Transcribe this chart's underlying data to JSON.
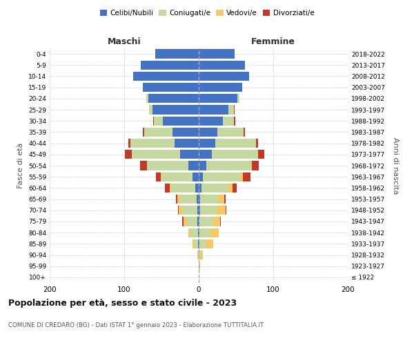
{
  "age_groups": [
    "100+",
    "95-99",
    "90-94",
    "85-89",
    "80-84",
    "75-79",
    "70-74",
    "65-69",
    "60-64",
    "55-59",
    "50-54",
    "45-49",
    "40-44",
    "35-39",
    "30-34",
    "25-29",
    "20-24",
    "15-19",
    "10-14",
    "5-9",
    "0-4"
  ],
  "birth_years": [
    "≤ 1922",
    "1923-1927",
    "1928-1932",
    "1933-1937",
    "1938-1942",
    "1943-1947",
    "1948-1952",
    "1953-1957",
    "1958-1962",
    "1963-1967",
    "1968-1972",
    "1973-1977",
    "1978-1982",
    "1983-1987",
    "1988-1992",
    "1993-1997",
    "1998-2002",
    "2003-2007",
    "2008-2012",
    "2013-2017",
    "2018-2022"
  ],
  "maschi": {
    "celibi": [
      0,
      0,
      0,
      1,
      1,
      2,
      2,
      3,
      5,
      8,
      14,
      25,
      32,
      35,
      48,
      62,
      68,
      75,
      88,
      78,
      58
    ],
    "coniugati": [
      0,
      0,
      1,
      5,
      10,
      14,
      20,
      22,
      32,
      42,
      55,
      65,
      60,
      38,
      12,
      5,
      2,
      0,
      0,
      0,
      0
    ],
    "vedovi": [
      0,
      0,
      1,
      2,
      3,
      4,
      5,
      4,
      2,
      1,
      0,
      0,
      0,
      0,
      0,
      0,
      0,
      0,
      0,
      0,
      0
    ],
    "divorziati": [
      0,
      0,
      0,
      0,
      0,
      2,
      1,
      2,
      6,
      6,
      10,
      9,
      2,
      2,
      1,
      0,
      0,
      0,
      0,
      0,
      0
    ]
  },
  "femmine": {
    "nubili": [
      0,
      0,
      0,
      1,
      1,
      1,
      2,
      2,
      4,
      6,
      10,
      18,
      22,
      25,
      32,
      40,
      52,
      58,
      68,
      62,
      48
    ],
    "coniugate": [
      0,
      1,
      2,
      8,
      14,
      18,
      22,
      24,
      35,
      50,
      60,
      62,
      55,
      35,
      15,
      7,
      3,
      0,
      0,
      0,
      0
    ],
    "vedove": [
      0,
      1,
      4,
      10,
      12,
      10,
      12,
      8,
      6,
      3,
      1,
      0,
      0,
      0,
      0,
      0,
      0,
      0,
      0,
      0,
      0
    ],
    "divorziate": [
      0,
      0,
      0,
      0,
      0,
      1,
      1,
      2,
      6,
      10,
      10,
      8,
      3,
      2,
      2,
      1,
      0,
      0,
      0,
      0,
      0
    ]
  },
  "colors": {
    "celibi": "#4472c4",
    "coniugati": "#c5d9a0",
    "vedovi": "#f5c96a",
    "divorziati": "#c0392b"
  },
  "xlim": 200,
  "title": "Popolazione per età, sesso e stato civile - 2023",
  "subtitle": "COMUNE DI CREDARO (BG) - Dati ISTAT 1° gennaio 2023 - Elaborazione TUTTITALIA.IT",
  "ylabel_left": "Fasce di età",
  "ylabel_right": "Anni di nascita",
  "xlabel_left": "Maschi",
  "xlabel_right": "Femmine",
  "bg_color": "#ffffff"
}
